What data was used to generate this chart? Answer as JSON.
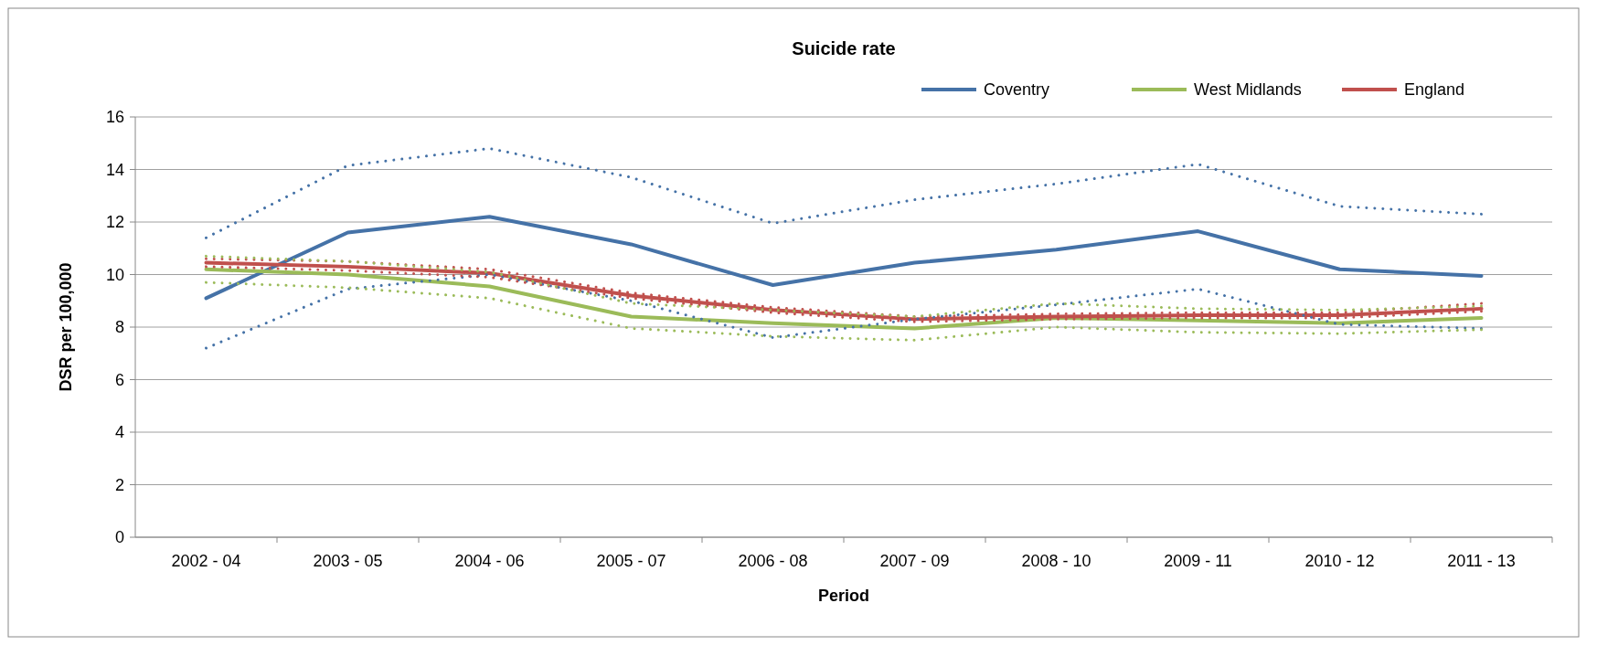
{
  "chart_data": {
    "type": "line",
    "title": "Suicide rate",
    "xlabel": "Period",
    "ylabel": "DSR per 100,000",
    "categories": [
      "2002 - 04",
      "2003 - 05",
      "2004 - 06",
      "2005 - 07",
      "2006 - 08",
      "2007 - 09",
      "2008 - 10",
      "2009 - 11",
      "2010 - 12",
      "2011 - 13"
    ],
    "ylim": [
      0,
      16
    ],
    "yticks": [
      0,
      2,
      4,
      6,
      8,
      10,
      12,
      14,
      16
    ],
    "grid": "y",
    "legend": "top right",
    "line_style": "solid",
    "series": [
      {
        "name": "Coventry",
        "color": "#4572a7",
        "values": [
          9.1,
          11.6,
          12.2,
          11.15,
          9.6,
          10.45,
          10.95,
          11.65,
          10.2,
          9.95
        ]
      },
      {
        "name": "West Midlands",
        "color": "#9bbb59",
        "values": [
          10.2,
          10.0,
          9.55,
          8.4,
          8.15,
          7.95,
          8.35,
          8.25,
          8.15,
          8.35
        ]
      },
      {
        "name": "England",
        "color": "#c0504d",
        "values": [
          10.45,
          10.3,
          10.05,
          9.2,
          8.65,
          8.3,
          8.4,
          8.45,
          8.45,
          8.7
        ]
      },
      {
        "color": "#4572a7",
        "line_style": "dotted",
        "values": [
          7.2,
          9.45,
          10.0,
          9.0,
          7.6,
          8.3,
          8.85,
          9.45,
          8.1,
          7.95
        ]
      },
      {
        "color": "#4572a7",
        "line_style": "dotted",
        "values": [
          11.4,
          14.15,
          14.8,
          13.7,
          11.95,
          12.85,
          13.45,
          14.2,
          12.6,
          12.3
        ]
      },
      {
        "color": "#c0504d",
        "line_style": "dotted",
        "values": [
          10.3,
          10.15,
          9.9,
          9.1,
          8.55,
          8.2,
          8.3,
          8.35,
          8.35,
          8.6
        ]
      },
      {
        "color": "#c0504d",
        "line_style": "dotted",
        "values": [
          10.6,
          10.5,
          10.2,
          9.3,
          8.75,
          8.4,
          8.5,
          8.55,
          8.55,
          8.9
        ]
      },
      {
        "color": "#9bbb59",
        "line_style": "dotted",
        "values": [
          9.7,
          9.5,
          9.1,
          7.95,
          7.65,
          7.5,
          8.0,
          7.8,
          7.75,
          7.9
        ]
      },
      {
        "color": "#9bbb59",
        "line_style": "dotted",
        "values": [
          10.7,
          10.5,
          10.1,
          8.9,
          8.65,
          8.4,
          8.9,
          8.7,
          8.65,
          8.8
        ]
      }
    ]
  }
}
